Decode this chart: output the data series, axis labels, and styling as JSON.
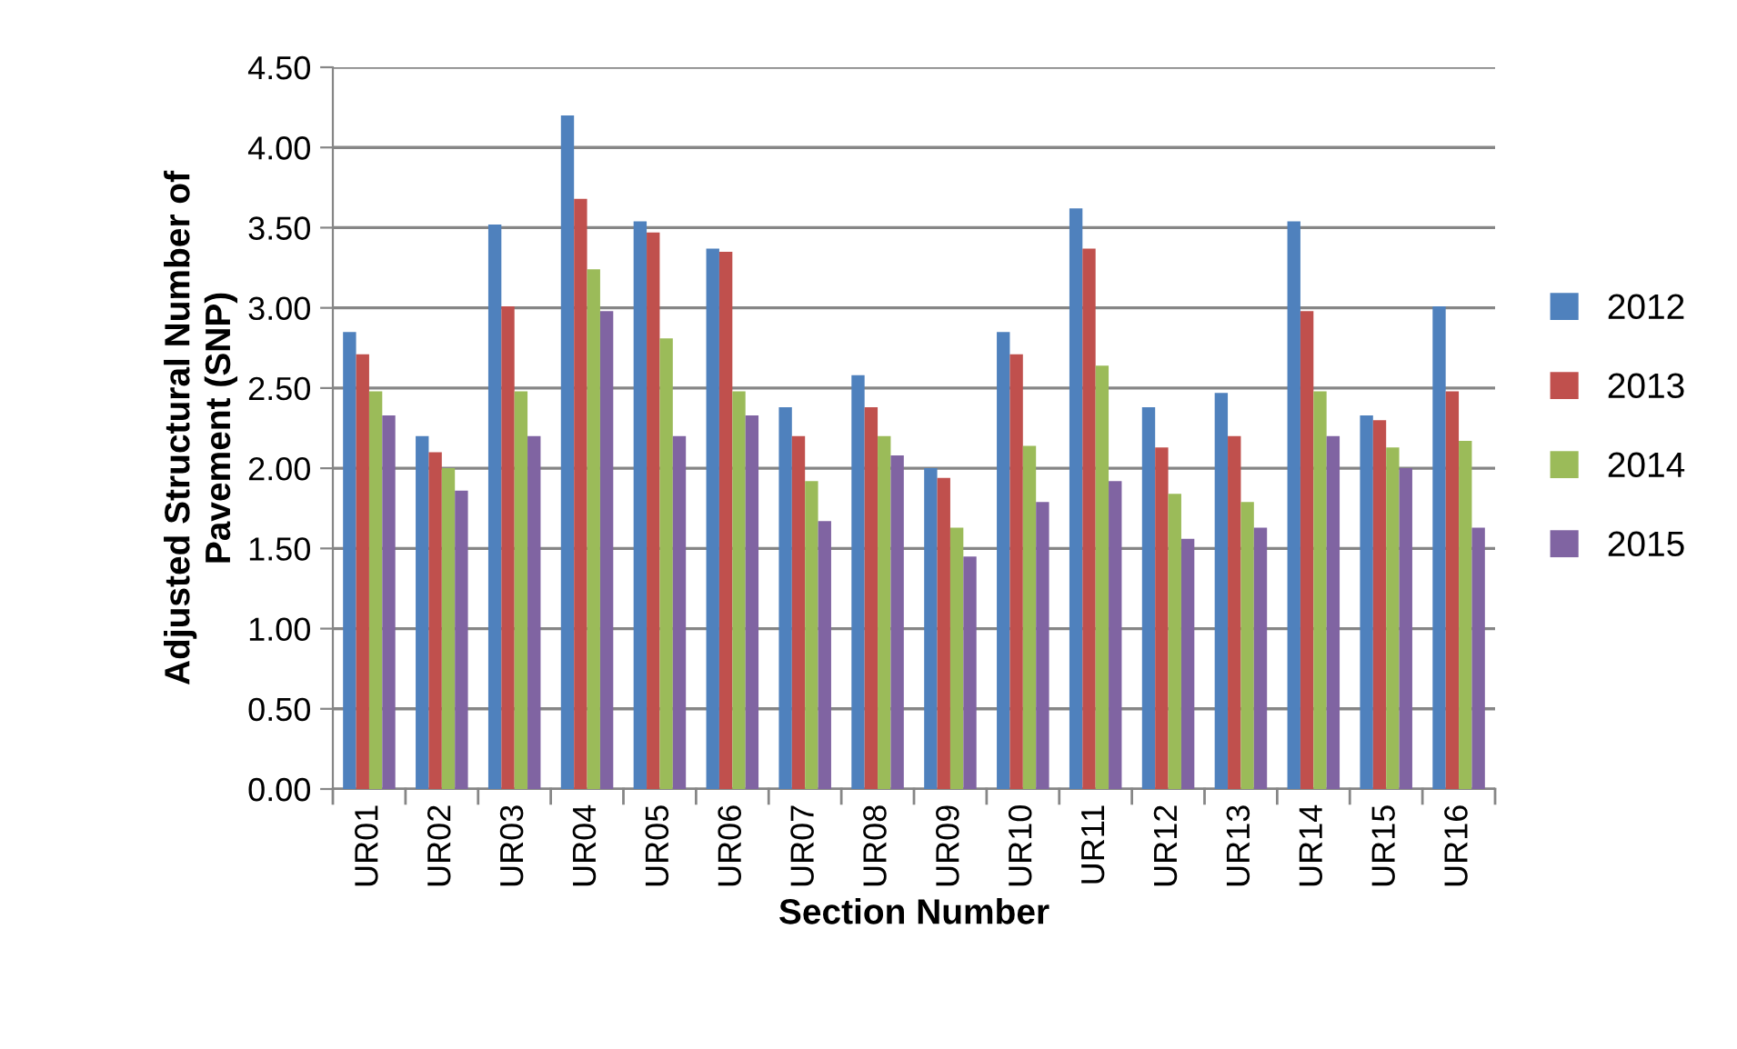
{
  "chart_data": {
    "type": "bar",
    "xlabel": "Section Number",
    "ylabel": "Adjusted Structural Number of\nPavement (SNP)",
    "categories": [
      "UR01",
      "UR02",
      "UR03",
      "UR04",
      "UR05",
      "UR06",
      "UR07",
      "UR08",
      "UR09",
      "UR10",
      "UR11",
      "UR12",
      "UR13",
      "UR14",
      "UR15",
      "UR16"
    ],
    "series": [
      {
        "name": "2012",
        "color": "#4f81bd",
        "values": [
          2.85,
          2.2,
          3.52,
          4.2,
          3.54,
          3.37,
          2.38,
          2.58,
          2.0,
          2.85,
          3.62,
          2.38,
          2.47,
          3.54,
          2.33,
          3.01
        ]
      },
      {
        "name": "2013",
        "color": "#c0504d",
        "values": [
          2.71,
          2.1,
          3.01,
          3.68,
          3.47,
          3.35,
          2.2,
          2.38,
          1.94,
          2.71,
          3.37,
          2.13,
          2.2,
          2.98,
          2.3,
          2.48
        ]
      },
      {
        "name": "2014",
        "color": "#9bbb59",
        "values": [
          2.48,
          2.0,
          2.48,
          3.24,
          2.81,
          2.48,
          1.92,
          2.2,
          1.63,
          2.14,
          2.64,
          1.84,
          1.79,
          2.48,
          2.13,
          2.17
        ]
      },
      {
        "name": "2015",
        "color": "#8064a2",
        "values": [
          2.33,
          1.86,
          2.2,
          2.98,
          2.2,
          2.33,
          1.67,
          2.08,
          1.45,
          1.79,
          1.92,
          1.56,
          1.63,
          2.2,
          2.0,
          1.63
        ]
      }
    ],
    "ylim": [
      0,
      4.5
    ],
    "yticks": [
      {
        "value": 0,
        "label": "0.00"
      },
      {
        "value": 0.5,
        "label": "0.50"
      },
      {
        "value": 1,
        "label": "1.00"
      },
      {
        "value": 1.5,
        "label": "1.50"
      },
      {
        "value": 2,
        "label": "2.00"
      },
      {
        "value": 2.5,
        "label": "2.50"
      },
      {
        "value": 3,
        "label": "3.00"
      },
      {
        "value": 3.5,
        "label": "3.50"
      },
      {
        "value": 4,
        "label": "4.00"
      },
      {
        "value": 4.5,
        "label": "4.50"
      }
    ],
    "grid": "y",
    "legend": "right"
  }
}
